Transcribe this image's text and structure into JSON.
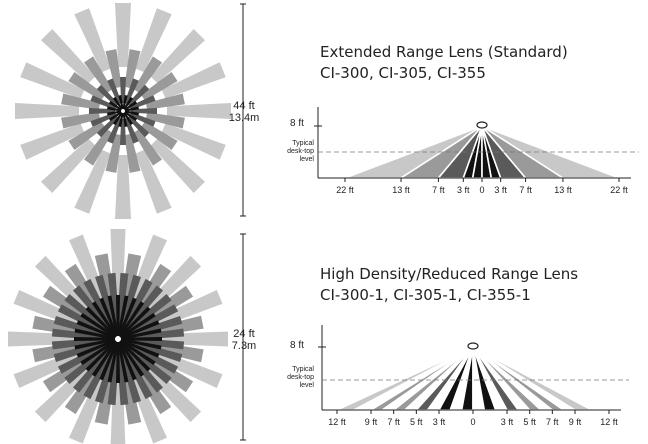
{
  "sections": [
    {
      "id": "extended",
      "title": "Extended Range Lens (Standard)",
      "models": "CI-300, CI-305, CI-355",
      "coverage_ft": "44 ft",
      "coverage_m": "13.4m",
      "height_label": "8 ft",
      "desk_label": [
        "Typical",
        "desk-top",
        "level"
      ],
      "ticks": [
        "22 ft",
        "13 ft",
        "7 ft",
        "3 ft",
        "0",
        "3 ft",
        "7 ft",
        "13 ft",
        "22 ft"
      ],
      "tick_values": [
        -22,
        -13,
        -7,
        -3,
        0,
        3,
        7,
        13,
        22
      ]
    },
    {
      "id": "high-density",
      "title": "High Density/Reduced Range Lens",
      "models": "CI-300-1, CI-305-1, CI-355-1",
      "coverage_ft": "24 ft",
      "coverage_m": "7.3m",
      "height_label": "8 ft",
      "desk_label": [
        "Typical",
        "desk-top",
        "level"
      ],
      "ticks": [
        "12 ft",
        "9 ft",
        "7 ft",
        "5 ft",
        "3 ft",
        "0",
        "3 ft",
        "5 ft",
        "7 ft",
        "9 ft",
        "12 ft"
      ],
      "tick_values": [
        -12,
        -9,
        -7,
        -5,
        -3,
        0,
        3,
        5,
        7,
        9,
        12
      ]
    }
  ],
  "colors": {
    "light": "#c8c8c8",
    "mid": "#9a9a9a",
    "dark": "#5a5a5a",
    "black": "#111111",
    "line": "#222222"
  }
}
